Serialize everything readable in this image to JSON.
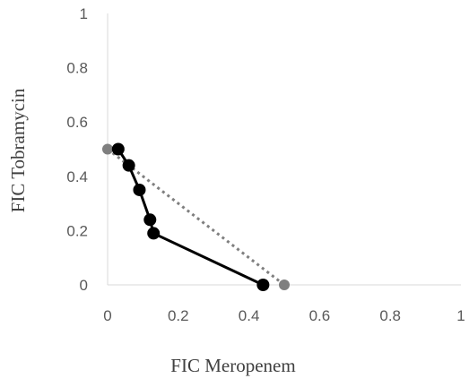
{
  "chart_data": {
    "type": "scatter",
    "title": "",
    "xlabel": "FIC Meropenem",
    "ylabel": "FIC Tobramycin",
    "xlim": [
      0,
      1
    ],
    "ylim": [
      0,
      1
    ],
    "x_ticks": [
      "0",
      "0.2",
      "0.4",
      "0.6",
      "0.8",
      "1"
    ],
    "y_ticks": [
      "0",
      "0.2",
      "0.4",
      "0.6",
      "0.8",
      "1"
    ],
    "grid": false,
    "legend": "none",
    "series": [
      {
        "style": "solid-line-with-markers",
        "color": "#000000",
        "points": [
          {
            "x": 0.03,
            "y": 0.5
          },
          {
            "x": 0.06,
            "y": 0.44
          },
          {
            "x": 0.09,
            "y": 0.35
          },
          {
            "x": 0.12,
            "y": 0.24
          },
          {
            "x": 0.13,
            "y": 0.19
          },
          {
            "x": 0.44,
            "y": 0.0
          }
        ]
      },
      {
        "style": "dotted-line-with-markers",
        "color": "#7f7f7f",
        "points": [
          {
            "x": 0.0,
            "y": 0.5
          },
          {
            "x": 0.5,
            "y": 0.0
          }
        ]
      }
    ]
  }
}
